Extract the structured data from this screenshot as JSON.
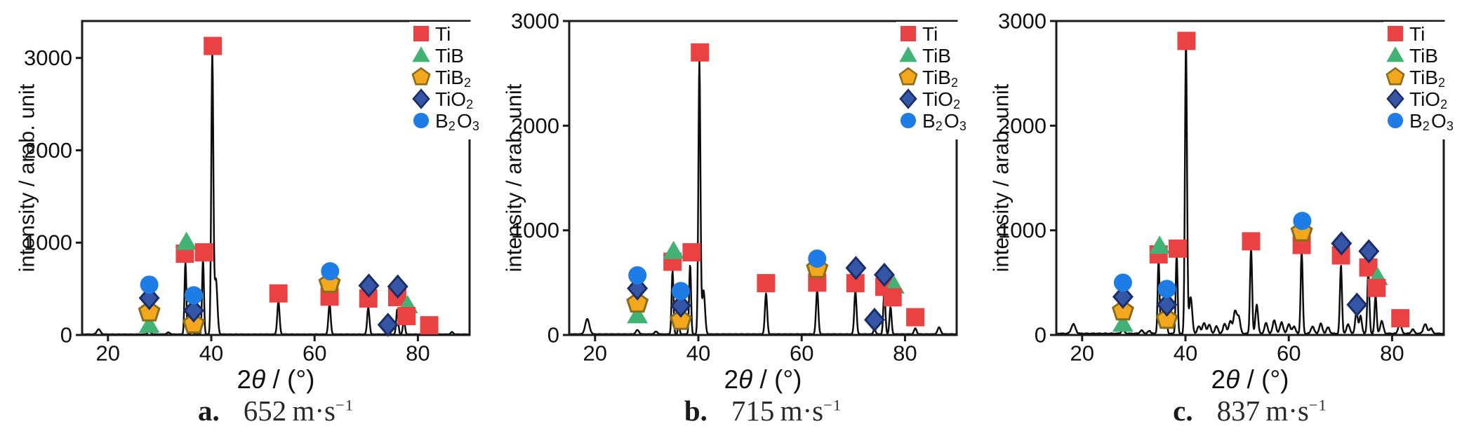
{
  "figure": {
    "ylabel": "intensity / arab. unit",
    "xlabel": {
      "pre": "2",
      "theta": "θ",
      "post": " / (°)"
    },
    "background": "#ffffff",
    "axis_color": "#1a1a1a",
    "line_color": "#0d0d0d"
  },
  "phases": {
    "Ti": {
      "shape": "square",
      "fill": "#ea4242",
      "stroke": "#ea4242"
    },
    "TiB": {
      "shape": "triangle",
      "fill": "#42b374",
      "stroke": "#42b374"
    },
    "TiB2": {
      "shape": "pentagon",
      "fill": "#f2a71c",
      "stroke": "#8a6d1a"
    },
    "TiO2": {
      "shape": "diamond",
      "fill": "#3556a6",
      "stroke": "#1b2d66"
    },
    "B2O3": {
      "shape": "circle",
      "fill": "#1e7ce6",
      "stroke": "#1e7ce6"
    }
  },
  "legend": {
    "position": "top-right",
    "entries": [
      {
        "phase": "Ti",
        "parts": [
          [
            "Ti",
            false
          ]
        ]
      },
      {
        "phase": "TiB",
        "parts": [
          [
            "TiB",
            false
          ]
        ]
      },
      {
        "phase": "TiB2",
        "parts": [
          [
            "TiB",
            false
          ],
          [
            "2",
            true
          ]
        ]
      },
      {
        "phase": "TiO2",
        "parts": [
          [
            "TiO",
            false
          ],
          [
            "2",
            true
          ]
        ]
      },
      {
        "phase": "B2O3",
        "parts": [
          [
            "B",
            false
          ],
          [
            "2",
            true
          ],
          [
            "O",
            false
          ],
          [
            "3",
            true
          ]
        ]
      }
    ]
  },
  "chart_data": [
    {
      "type": "line",
      "caption": {
        "letter": "a.",
        "value": "652",
        "unit": "m·s",
        "exponent": "−1"
      },
      "xlim": [
        15,
        90
      ],
      "ylim": [
        0,
        3400
      ],
      "xticks": [
        20,
        40,
        60,
        80
      ],
      "yticks": [
        0,
        1000,
        2000,
        3000
      ],
      "grid": false,
      "noise": 5,
      "peaks": [
        [
          18.2,
          55,
          0.35
        ],
        [
          28.0,
          35,
          0.3
        ],
        [
          31.7,
          20,
          0.3
        ],
        [
          35.0,
          780,
          0.18
        ],
        [
          36.3,
          140,
          0.16
        ],
        [
          38.4,
          805,
          0.18
        ],
        [
          40.2,
          3040,
          0.2
        ],
        [
          40.9,
          600,
          0.28
        ],
        [
          53.0,
          360,
          0.22
        ],
        [
          62.9,
          330,
          0.22
        ],
        [
          70.4,
          290,
          0.22
        ],
        [
          74.2,
          65,
          0.2
        ],
        [
          76.0,
          270,
          0.2
        ],
        [
          77.3,
          160,
          0.2
        ],
        [
          82.1,
          35,
          0.25
        ],
        [
          86.6,
          25,
          0.25
        ]
      ],
      "markers": [
        [
          28.0,
          105,
          "TiB"
        ],
        [
          28.0,
          250,
          "TiB2"
        ],
        [
          28.0,
          400,
          "TiO2"
        ],
        [
          28.0,
          545,
          "B2O3"
        ],
        [
          34.9,
          880,
          "Ti"
        ],
        [
          35.2,
          1005,
          "TiB"
        ],
        [
          36.6,
          120,
          "TiB2"
        ],
        [
          36.6,
          265,
          "TiO2"
        ],
        [
          36.6,
          430,
          "B2O3"
        ],
        [
          38.6,
          895,
          "Ti"
        ],
        [
          40.3,
          3130,
          "Ti"
        ],
        [
          53.0,
          450,
          "Ti"
        ],
        [
          62.9,
          415,
          "Ti"
        ],
        [
          62.9,
          560,
          "TiB2"
        ],
        [
          63.0,
          690,
          "B2O3"
        ],
        [
          70.4,
          395,
          "Ti"
        ],
        [
          70.5,
          535,
          "TiO2"
        ],
        [
          74.2,
          110,
          "TiO2"
        ],
        [
          76.0,
          410,
          "Ti"
        ],
        [
          76.1,
          525,
          "TiO2"
        ],
        [
          78.0,
          320,
          "TiB"
        ],
        [
          77.8,
          205,
          "Ti"
        ],
        [
          82.2,
          105,
          "Ti"
        ]
      ]
    },
    {
      "type": "line",
      "caption": {
        "letter": "b.",
        "value": "715",
        "unit": "m·s",
        "exponent": "−1"
      },
      "xlim": [
        15,
        90
      ],
      "ylim": [
        0,
        3000
      ],
      "xticks": [
        20,
        40,
        60,
        80
      ],
      "yticks": [
        0,
        1000,
        2000,
        3000
      ],
      "grid": false,
      "noise": 6,
      "peaks": [
        [
          18.5,
          145,
          0.4
        ],
        [
          28.2,
          40,
          0.3
        ],
        [
          31.8,
          25,
          0.3
        ],
        [
          35.0,
          605,
          0.18
        ],
        [
          36.2,
          110,
          0.16
        ],
        [
          38.4,
          665,
          0.18
        ],
        [
          40.2,
          2610,
          0.2
        ],
        [
          41.0,
          420,
          0.28
        ],
        [
          53.1,
          390,
          0.22
        ],
        [
          63.0,
          425,
          0.22
        ],
        [
          70.4,
          410,
          0.22
        ],
        [
          74.1,
          50,
          0.2
        ],
        [
          76.0,
          415,
          0.2
        ],
        [
          77.2,
          260,
          0.2
        ],
        [
          82.0,
          55,
          0.25
        ],
        [
          86.6,
          65,
          0.3
        ]
      ],
      "markers": [
        [
          28.2,
          185,
          "TiB"
        ],
        [
          28.2,
          305,
          "TiB2"
        ],
        [
          28.2,
          445,
          "TiO2"
        ],
        [
          28.2,
          570,
          "B2O3"
        ],
        [
          35.0,
          700,
          "Ti"
        ],
        [
          35.2,
          800,
          "TiB"
        ],
        [
          36.6,
          140,
          "TiB2"
        ],
        [
          36.6,
          280,
          "TiO2"
        ],
        [
          36.6,
          420,
          "B2O3"
        ],
        [
          38.7,
          790,
          "Ti"
        ],
        [
          40.3,
          2700,
          "Ti"
        ],
        [
          53.1,
          495,
          "Ti"
        ],
        [
          63.0,
          500,
          "Ti"
        ],
        [
          63.0,
          635,
          "TiB2"
        ],
        [
          63.0,
          730,
          "B2O3"
        ],
        [
          70.4,
          495,
          "Ti"
        ],
        [
          70.5,
          640,
          "TiO2"
        ],
        [
          74.1,
          145,
          "TiO2"
        ],
        [
          76.0,
          460,
          "Ti"
        ],
        [
          76.0,
          575,
          "TiO2"
        ],
        [
          77.9,
          470,
          "TiB"
        ],
        [
          77.6,
          360,
          "Ti"
        ],
        [
          82.0,
          170,
          "Ti"
        ]
      ]
    },
    {
      "type": "line",
      "caption": {
        "letter": "c.",
        "value": "837",
        "unit": "m·s",
        "exponent": "−1"
      },
      "xlim": [
        15,
        90
      ],
      "ylim": [
        0,
        3000
      ],
      "xticks": [
        20,
        40,
        60,
        80
      ],
      "yticks": [
        0,
        1000,
        2000,
        3000
      ],
      "grid": false,
      "noise": 14,
      "peaks": [
        [
          18.3,
          90,
          0.4
        ],
        [
          27.9,
          35,
          0.3
        ],
        [
          31.5,
          30,
          0.3
        ],
        [
          33.0,
          25,
          0.3
        ],
        [
          34.8,
          705,
          0.18
        ],
        [
          35.6,
          180,
          0.2
        ],
        [
          36.3,
          130,
          0.18
        ],
        [
          38.3,
          760,
          0.18
        ],
        [
          40.1,
          2780,
          0.2
        ],
        [
          41.0,
          350,
          0.3
        ],
        [
          42.6,
          70,
          0.3
        ],
        [
          43.6,
          100,
          0.3
        ],
        [
          44.6,
          85,
          0.3
        ],
        [
          46.0,
          70,
          0.3
        ],
        [
          47.6,
          95,
          0.3
        ],
        [
          48.7,
          120,
          0.3
        ],
        [
          49.6,
          210,
          0.3
        ],
        [
          50.3,
          160,
          0.3
        ],
        [
          52.7,
          815,
          0.2
        ],
        [
          53.8,
          280,
          0.25
        ],
        [
          55.6,
          100,
          0.3
        ],
        [
          57.2,
          130,
          0.3
        ],
        [
          58.6,
          110,
          0.3
        ],
        [
          60.0,
          90,
          0.3
        ],
        [
          61.0,
          70,
          0.3
        ],
        [
          62.5,
          780,
          0.2
        ],
        [
          64.6,
          70,
          0.3
        ],
        [
          66.2,
          95,
          0.3
        ],
        [
          67.6,
          60,
          0.3
        ],
        [
          70.1,
          655,
          0.2
        ],
        [
          71.5,
          90,
          0.3
        ],
        [
          73.1,
          210,
          0.25
        ],
        [
          73.9,
          170,
          0.25
        ],
        [
          75.4,
          590,
          0.2
        ],
        [
          76.8,
          360,
          0.2
        ],
        [
          78.0,
          120,
          0.3
        ],
        [
          81.5,
          100,
          0.3
        ],
        [
          84.0,
          40,
          0.3
        ],
        [
          86.4,
          90,
          0.35
        ],
        [
          87.5,
          50,
          0.3
        ]
      ],
      "markers": [
        [
          27.9,
          105,
          "TiB"
        ],
        [
          27.9,
          230,
          "TiB2"
        ],
        [
          27.9,
          365,
          "TiO2"
        ],
        [
          27.9,
          500,
          "B2O3"
        ],
        [
          34.8,
          770,
          "Ti"
        ],
        [
          35.0,
          850,
          "TiB"
        ],
        [
          36.4,
          150,
          "TiB2"
        ],
        [
          36.4,
          290,
          "TiO2"
        ],
        [
          36.4,
          440,
          "B2O3"
        ],
        [
          38.5,
          825,
          "Ti"
        ],
        [
          40.2,
          2810,
          "Ti"
        ],
        [
          52.7,
          895,
          "Ti"
        ],
        [
          62.5,
          860,
          "Ti"
        ],
        [
          62.5,
          985,
          "TiB2"
        ],
        [
          62.6,
          1090,
          "B2O3"
        ],
        [
          70.1,
          760,
          "Ti"
        ],
        [
          70.2,
          875,
          "TiO2"
        ],
        [
          73.2,
          290,
          "TiO2"
        ],
        [
          75.4,
          645,
          "Ti"
        ],
        [
          75.5,
          800,
          "TiO2"
        ],
        [
          77.2,
          550,
          "TiB"
        ],
        [
          77.0,
          450,
          "Ti"
        ],
        [
          81.6,
          160,
          "Ti"
        ]
      ]
    }
  ]
}
